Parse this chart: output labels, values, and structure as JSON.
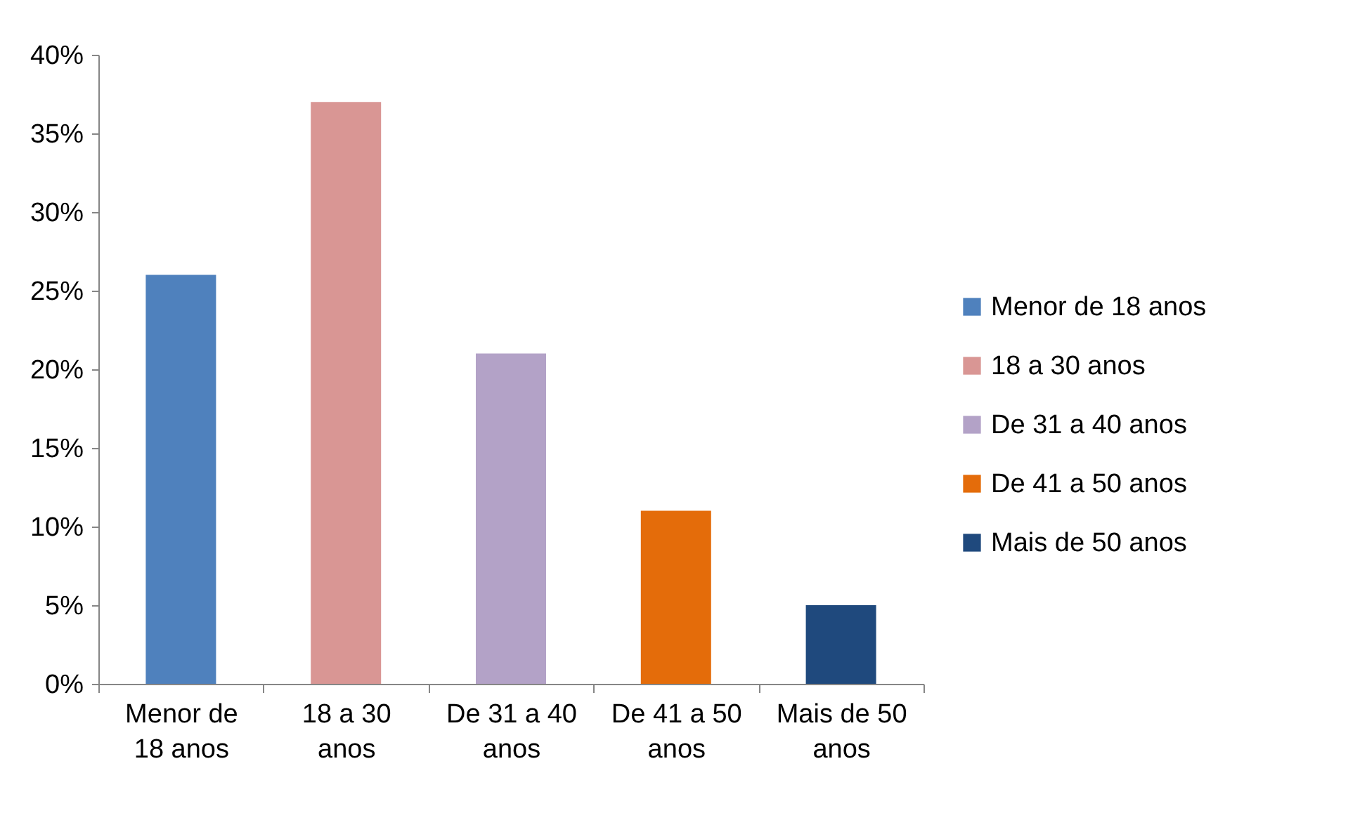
{
  "chart_data": {
    "type": "bar",
    "categories": [
      "Menor de 18 anos",
      "18 a 30 anos",
      "De 31 a 40 anos",
      "De 41 a 50 anos",
      "Mais de 50 anos"
    ],
    "series": [
      {
        "name": "Menor de 18 anos",
        "color": "#4f81bd",
        "values": [
          26,
          null,
          null,
          null,
          null
        ]
      },
      {
        "name": "18 a 30 anos",
        "color": "#d99694",
        "values": [
          null,
          37,
          null,
          null,
          null
        ]
      },
      {
        "name": "De 31 a 40 anos",
        "color": "#b3a2c7",
        "values": [
          null,
          null,
          21,
          null,
          null
        ]
      },
      {
        "name": "De 41 a 50 anos",
        "color": "#e46c0a",
        "values": [
          null,
          null,
          null,
          11,
          null
        ]
      },
      {
        "name": "Mais de 50 anos",
        "color": "#1f497d",
        "values": [
          null,
          null,
          null,
          null,
          5
        ]
      }
    ],
    "ylim": [
      0,
      40
    ],
    "yticks": [
      {
        "value": 0,
        "label": "0%"
      },
      {
        "value": 5,
        "label": "5%"
      },
      {
        "value": 10,
        "label": "10%"
      },
      {
        "value": 15,
        "label": "15%"
      },
      {
        "value": 20,
        "label": "20%"
      },
      {
        "value": 25,
        "label": "25%"
      },
      {
        "value": 30,
        "label": "30%"
      },
      {
        "value": 35,
        "label": "35%"
      },
      {
        "value": 40,
        "label": "40%"
      }
    ],
    "grid": false,
    "legend": "right"
  }
}
